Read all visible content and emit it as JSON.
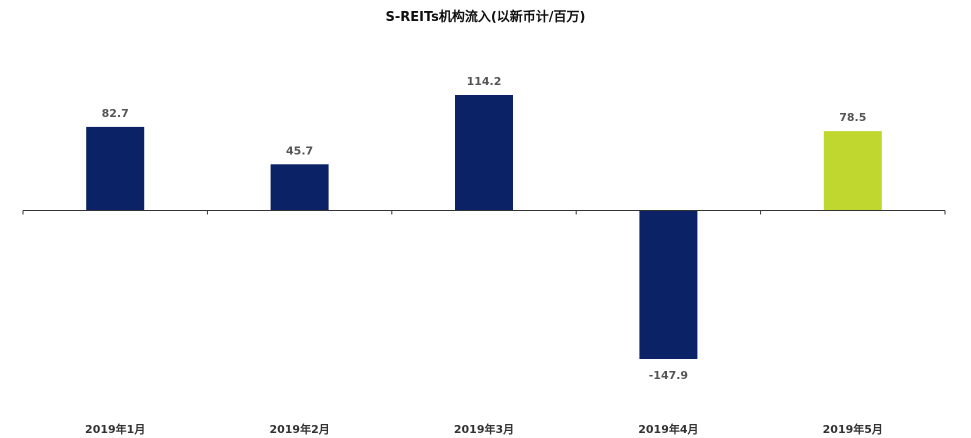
{
  "chart_data": {
    "type": "bar",
    "title": "S-REITs机构流入(以新币计/百万)",
    "categories": [
      "2019年1月",
      "2019年2月",
      "2019年3月",
      "2019年4月",
      "2019年5月"
    ],
    "values": [
      82.7,
      45.7,
      114.2,
      -147.9,
      78.5
    ],
    "value_labels": [
      "82.7",
      "45.7",
      "114.2",
      "-147.9",
      "78.5"
    ],
    "colors": [
      "#0c2266",
      "#0c2266",
      "#0c2266",
      "#0c2266",
      "#c0d730"
    ],
    "xlabel": "",
    "ylabel": "",
    "ylim": [
      -147.9,
      114.2
    ],
    "grid": false,
    "legend": "none"
  }
}
